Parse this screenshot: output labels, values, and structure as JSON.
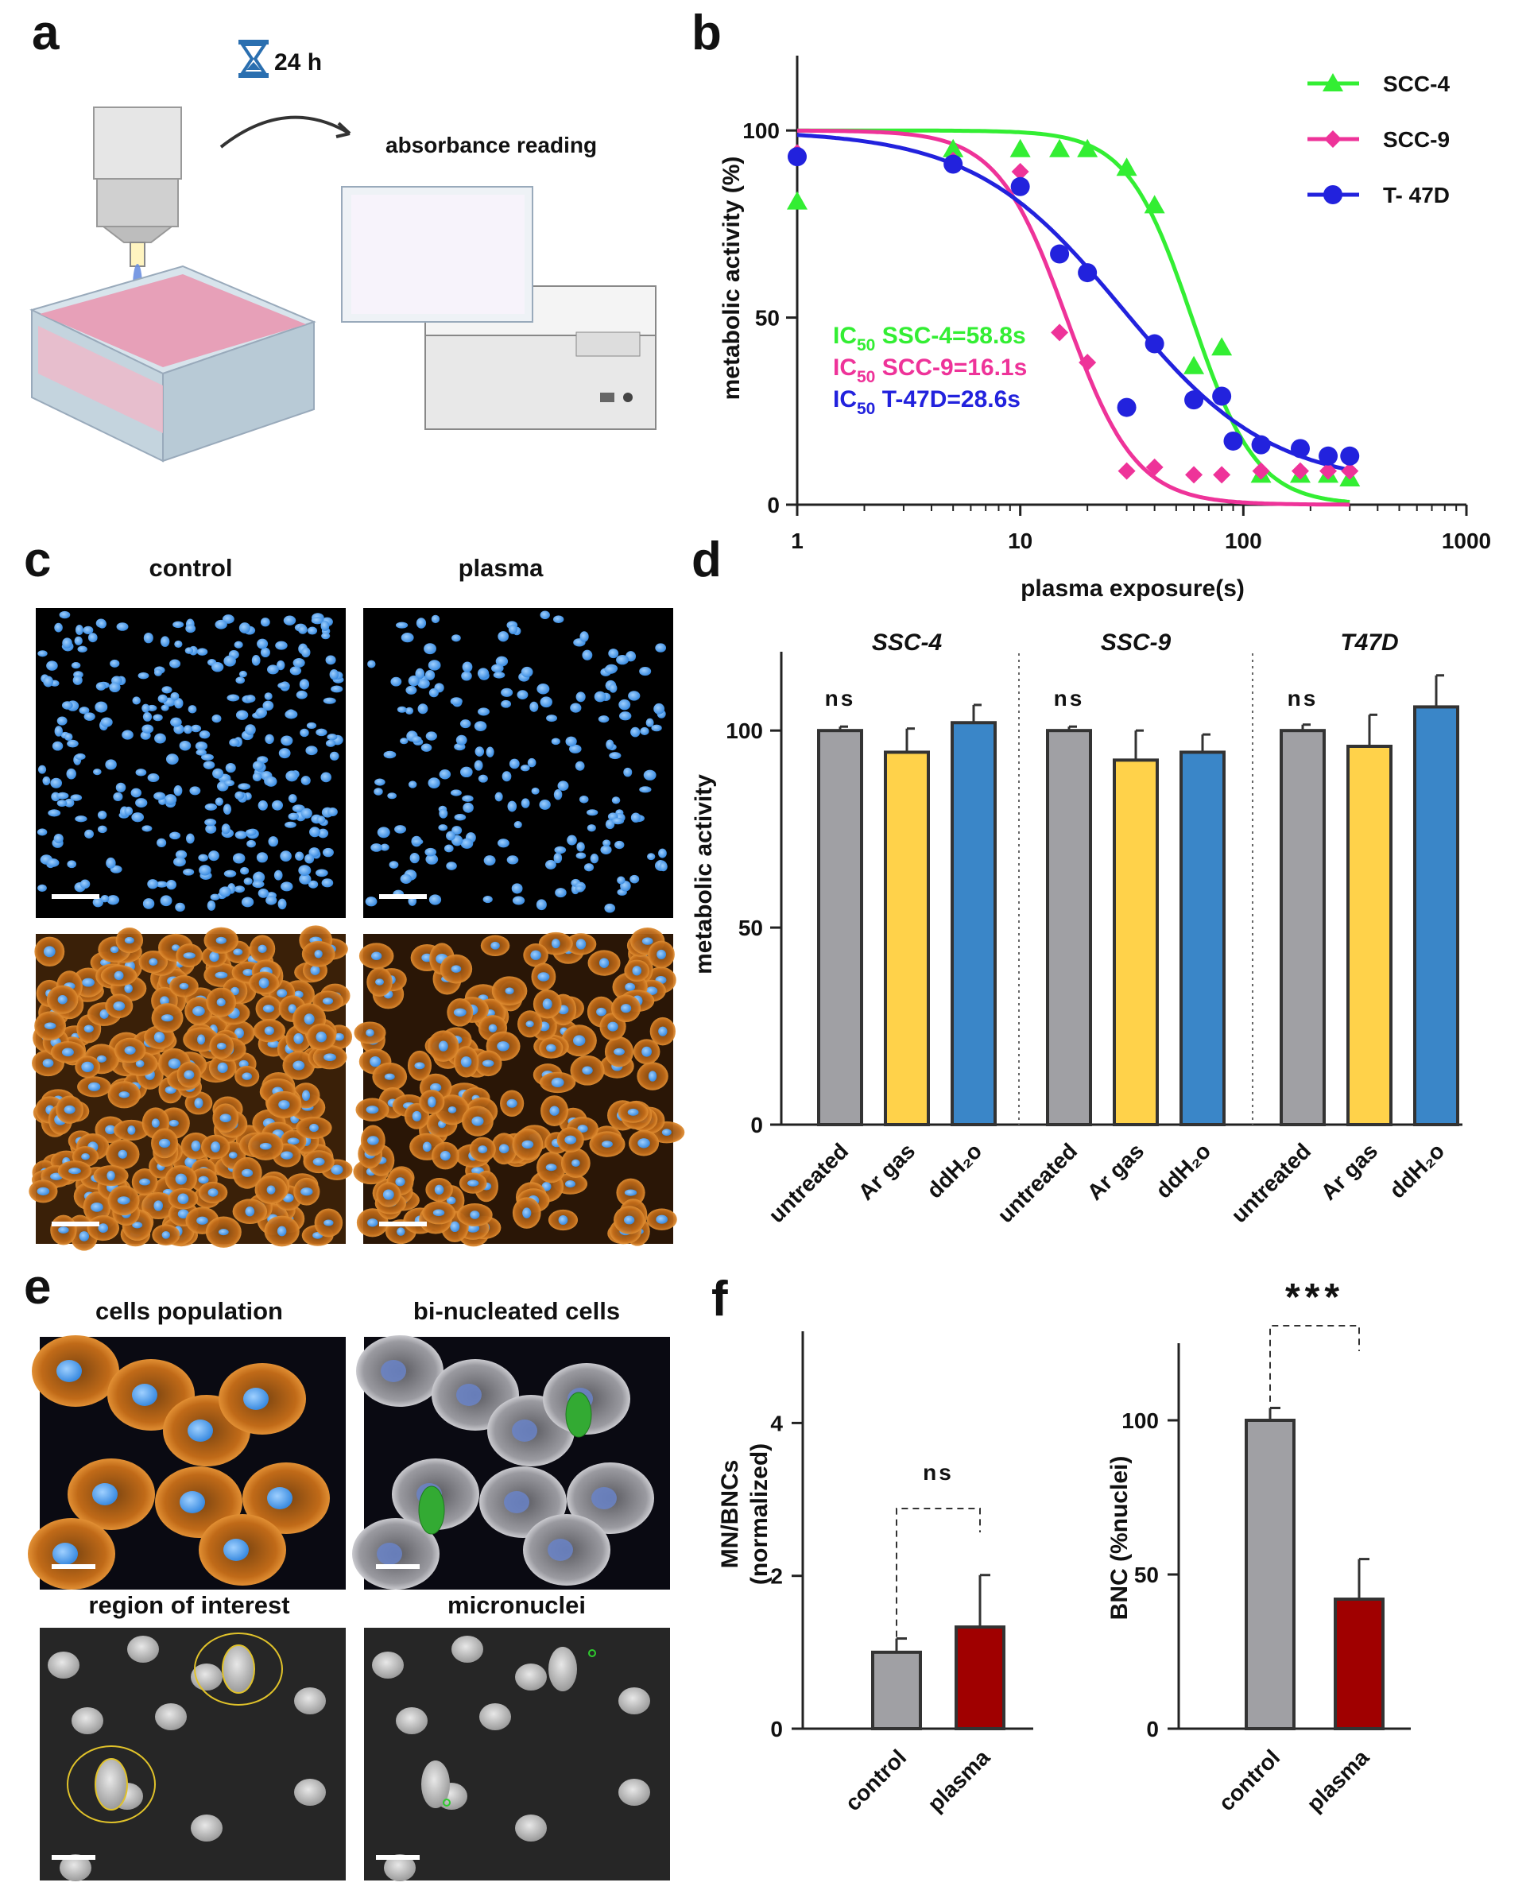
{
  "panels": {
    "a": {
      "letter": "a",
      "timer": "24 h",
      "reading": "absorbance reading"
    },
    "c": {
      "letter": "c",
      "col_control": "control",
      "col_plasma": "plasma"
    },
    "e": {
      "letter": "e",
      "t1": "cells  population",
      "t2": "bi-nucleated  cells",
      "t3": "region  of  interest",
      "t4": "micronuclei"
    },
    "b": {
      "letter": "b"
    },
    "d": {
      "letter": "d"
    },
    "f": {
      "letter": "f"
    }
  },
  "colors": {
    "scc4": "#33ee33",
    "scc9": "#ee3399",
    "t47d": "#2222dd",
    "gray": "#a0a0a4",
    "yellow": "#ffd24a",
    "blue": "#3a86c8",
    "darkred": "#a00000"
  },
  "chart_data": [
    {
      "id": "b",
      "type": "scatter",
      "xlabel": "plasma exposure(s)",
      "ylabel": "metabolic activity (%)",
      "xscale": "log",
      "xlim": [
        1,
        1000
      ],
      "ylim": [
        0,
        120
      ],
      "xticks": [
        "1",
        "10",
        "100",
        "1000"
      ],
      "yticks": [
        "0",
        "50",
        "100"
      ],
      "legend_position": "top-right",
      "series": [
        {
          "name": "SCC-4",
          "marker": "triangle",
          "color": "#33ee33",
          "x": [
            1,
            5,
            10,
            15,
            20,
            30,
            40,
            60,
            80,
            120,
            180,
            240,
            300
          ],
          "y": [
            81,
            95,
            95,
            95,
            95,
            90,
            80,
            37,
            42,
            8,
            8,
            8,
            7
          ],
          "fit": {
            "top": 100,
            "bottom": 0,
            "ic50": 58.8,
            "hill": 3.0
          }
        },
        {
          "name": "SCC-9",
          "marker": "diamond",
          "color": "#ee3399",
          "x": [
            1,
            5,
            10,
            15,
            20,
            30,
            40,
            60,
            80,
            120,
            180,
            240,
            300
          ],
          "y": [
            94,
            92,
            89,
            46,
            38,
            9,
            10,
            8,
            8,
            9,
            9,
            9,
            9
          ],
          "fit": {
            "top": 100,
            "bottom": 0,
            "ic50": 16.1,
            "hill": 2.8
          }
        },
        {
          "name": "T- 47D",
          "marker": "circle",
          "color": "#2222dd",
          "x": [
            1,
            5,
            10,
            15,
            20,
            30,
            40,
            60,
            80,
            90,
            120,
            180,
            240,
            300
          ],
          "y": [
            93,
            91,
            85,
            67,
            62,
            26,
            43,
            28,
            29,
            17,
            16,
            15,
            13,
            13
          ],
          "fit": {
            "top": 100,
            "bottom": 5,
            "ic50": 28.6,
            "hill": 1.3
          }
        }
      ],
      "annotations": [
        {
          "prefix": "IC",
          "sub": "50",
          "text": "  SSC-4=58.8s",
          "color": "#33ee33"
        },
        {
          "prefix": "IC",
          "sub": "50",
          "text": "  SCC-9=16.1s",
          "color": "#ee3399"
        },
        {
          "prefix": "IC",
          "sub": "50",
          "text": "  T-47D=28.6s",
          "color": "#2222dd"
        }
      ]
    },
    {
      "id": "d",
      "type": "bar",
      "ylabel": "metabolic activity",
      "ylim": [
        0,
        120
      ],
      "yticks": [
        "0",
        "50",
        "100"
      ],
      "groups": [
        "SSC-4",
        "SSC-9",
        "T47D"
      ],
      "categories": [
        "untreated",
        "Ar gas",
        "ddH₂o"
      ],
      "significance": [
        "ns",
        "ns",
        "ns"
      ],
      "values": [
        [
          100,
          94.5,
          102
        ],
        [
          100,
          92.5,
          94.5
        ],
        [
          100,
          96,
          106
        ]
      ],
      "errors": [
        [
          1,
          6,
          4.5
        ],
        [
          1,
          7.5,
          4.5
        ],
        [
          1.5,
          8,
          8
        ]
      ]
    },
    {
      "id": "f1",
      "type": "bar",
      "ylabel": "MN/BNCs\n(normalized)",
      "ylim": [
        0,
        5.2
      ],
      "yticks": [
        "0",
        "2",
        "4"
      ],
      "categories": [
        "control",
        "plasma"
      ],
      "values": [
        1.0,
        1.33
      ],
      "errors": [
        0.18,
        0.68
      ],
      "significance": "ns"
    },
    {
      "id": "f2",
      "type": "bar",
      "ylabel": "BNC (%nuclei)",
      "ylim": [
        0,
        125
      ],
      "yticks": [
        "0",
        "50",
        "100"
      ],
      "categories": [
        "control",
        "plasma"
      ],
      "values": [
        100,
        42
      ],
      "errors": [
        4,
        13
      ],
      "significance": "***"
    }
  ]
}
